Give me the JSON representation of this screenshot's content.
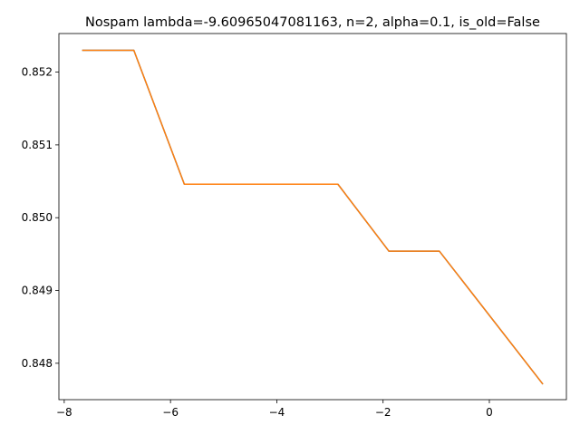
{
  "chart_data": {
    "type": "line",
    "title": "Nospam lambda=-9.60965047081163, n=2, alpha=0.1, is_old=False",
    "xlabel": "",
    "ylabel": "",
    "xlim": [
      -8.1,
      1.45
    ],
    "ylim": [
      0.8475,
      0.85253
    ],
    "xticks": [
      -8,
      -6,
      -4,
      -2,
      0
    ],
    "xtick_labels": [
      "−8",
      "−6",
      "−4",
      "−2",
      "0"
    ],
    "yticks": [
      0.848,
      0.849,
      0.85,
      0.851,
      0.852
    ],
    "ytick_labels": [
      "0.848",
      "0.849",
      "0.850",
      "0.851",
      "0.852"
    ],
    "grid": false,
    "series": [
      {
        "color": "#1f77b4",
        "x": [
          -7.65,
          -6.69,
          -5.74,
          -2.85,
          -1.89,
          -0.94,
          1.0
        ],
        "y": [
          0.8523,
          0.8523,
          0.85046,
          0.85046,
          0.84954,
          0.84954,
          0.84772
        ]
      },
      {
        "color": "#ff7f0e",
        "x": [
          -7.65,
          -6.69,
          -5.74,
          -2.85,
          -1.89,
          -0.94,
          1.0
        ],
        "y": [
          0.8523,
          0.8523,
          0.85046,
          0.85046,
          0.84954,
          0.84954,
          0.84772
        ]
      }
    ]
  }
}
